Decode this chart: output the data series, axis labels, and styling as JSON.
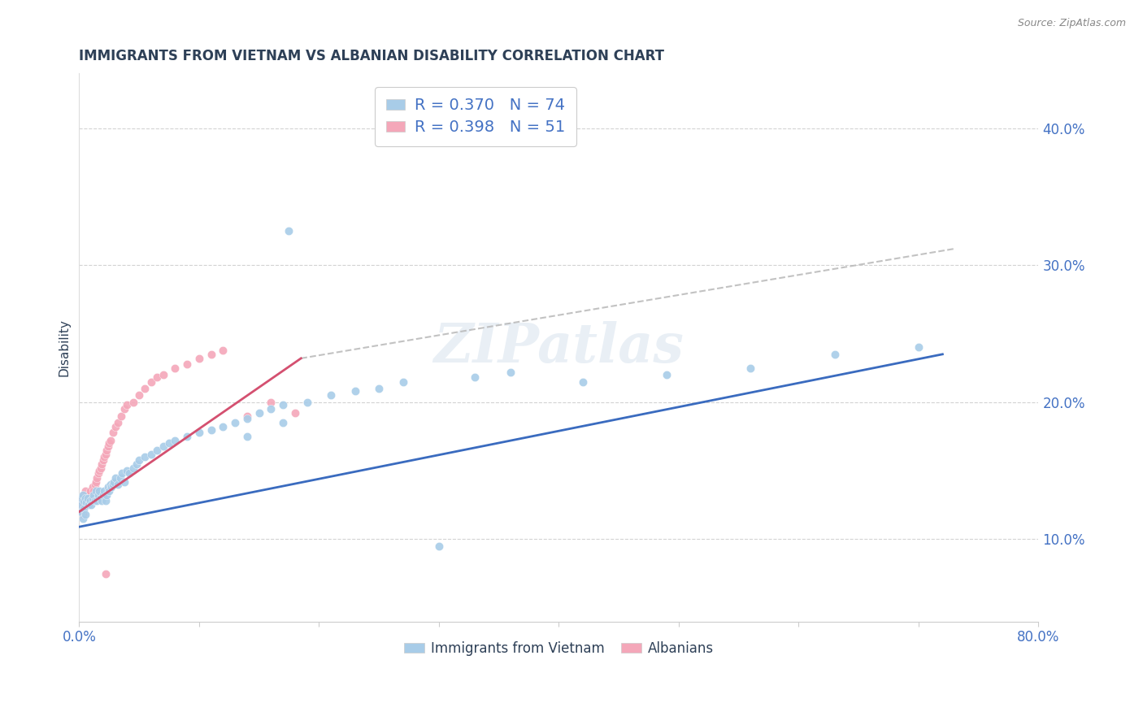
{
  "title": "IMMIGRANTS FROM VIETNAM VS ALBANIAN DISABILITY CORRELATION CHART",
  "source": "Source: ZipAtlas.com",
  "ylabel": "Disability",
  "xlim": [
    0.0,
    0.8
  ],
  "ylim": [
    0.04,
    0.44
  ],
  "xticks": [
    0.0,
    0.1,
    0.2,
    0.3,
    0.4,
    0.5,
    0.6,
    0.7,
    0.8
  ],
  "yticks": [
    0.1,
    0.2,
    0.3,
    0.4
  ],
  "ytick_labels": [
    "10.0%",
    "20.0%",
    "30.0%",
    "40.0%"
  ],
  "background_color": "#ffffff",
  "grid_color": "#c8c8c8",
  "watermark": "ZIPatlas",
  "vietnam": {
    "name": "Immigrants from Vietnam",
    "R": "0.370",
    "N": "74",
    "scatter_color": "#a8cce8",
    "trend_color": "#3a6bbf",
    "points_x": [
      0.001,
      0.002,
      0.002,
      0.003,
      0.003,
      0.004,
      0.004,
      0.005,
      0.005,
      0.006,
      0.007,
      0.008,
      0.009,
      0.01,
      0.011,
      0.012,
      0.013,
      0.014,
      0.015,
      0.016,
      0.017,
      0.018,
      0.019,
      0.02,
      0.021,
      0.022,
      0.023,
      0.024,
      0.025,
      0.026,
      0.027,
      0.028,
      0.029,
      0.03,
      0.032,
      0.034,
      0.036,
      0.038,
      0.04,
      0.042,
      0.045,
      0.048,
      0.05,
      0.055,
      0.06,
      0.065,
      0.07,
      0.075,
      0.08,
      0.09,
      0.1,
      0.11,
      0.12,
      0.13,
      0.14,
      0.15,
      0.16,
      0.17,
      0.19,
      0.21,
      0.23,
      0.25,
      0.27,
      0.3,
      0.33,
      0.36,
      0.14,
      0.17,
      0.42,
      0.49,
      0.56,
      0.63,
      0.175,
      0.7
    ],
    "points_y": [
      0.125,
      0.13,
      0.12,
      0.115,
      0.132,
      0.128,
      0.122,
      0.118,
      0.13,
      0.127,
      0.13,
      0.125,
      0.128,
      0.125,
      0.13,
      0.132,
      0.128,
      0.135,
      0.128,
      0.132,
      0.135,
      0.13,
      0.128,
      0.132,
      0.135,
      0.128,
      0.132,
      0.138,
      0.135,
      0.14,
      0.138,
      0.14,
      0.142,
      0.145,
      0.14,
      0.145,
      0.148,
      0.142,
      0.15,
      0.148,
      0.152,
      0.155,
      0.158,
      0.16,
      0.162,
      0.165,
      0.168,
      0.17,
      0.172,
      0.175,
      0.178,
      0.18,
      0.182,
      0.185,
      0.188,
      0.192,
      0.195,
      0.198,
      0.2,
      0.205,
      0.208,
      0.21,
      0.215,
      0.095,
      0.218,
      0.222,
      0.175,
      0.185,
      0.215,
      0.22,
      0.225,
      0.235,
      0.325,
      0.24
    ],
    "trend_x": [
      0.0,
      0.72
    ],
    "trend_y": [
      0.109,
      0.235
    ]
  },
  "albanian": {
    "name": "Albanians",
    "R": "0.398",
    "N": "51",
    "scatter_color": "#f4a7b9",
    "trend_color": "#d45070",
    "points_x": [
      0.001,
      0.002,
      0.002,
      0.003,
      0.003,
      0.004,
      0.004,
      0.005,
      0.005,
      0.006,
      0.007,
      0.008,
      0.009,
      0.01,
      0.011,
      0.012,
      0.013,
      0.014,
      0.015,
      0.016,
      0.017,
      0.018,
      0.019,
      0.02,
      0.021,
      0.022,
      0.023,
      0.024,
      0.025,
      0.026,
      0.028,
      0.03,
      0.032,
      0.035,
      0.038,
      0.04,
      0.045,
      0.05,
      0.055,
      0.06,
      0.065,
      0.07,
      0.08,
      0.09,
      0.1,
      0.11,
      0.12,
      0.14,
      0.16,
      0.18,
      0.022
    ],
    "points_y": [
      0.125,
      0.128,
      0.122,
      0.13,
      0.118,
      0.125,
      0.132,
      0.128,
      0.135,
      0.13,
      0.132,
      0.128,
      0.135,
      0.13,
      0.138,
      0.135,
      0.14,
      0.142,
      0.145,
      0.148,
      0.15,
      0.152,
      0.155,
      0.158,
      0.16,
      0.162,
      0.165,
      0.168,
      0.17,
      0.172,
      0.178,
      0.182,
      0.185,
      0.19,
      0.195,
      0.198,
      0.2,
      0.205,
      0.21,
      0.215,
      0.218,
      0.22,
      0.225,
      0.228,
      0.232,
      0.235,
      0.238,
      0.19,
      0.2,
      0.192,
      0.075
    ],
    "trend_x": [
      0.0,
      0.185
    ],
    "trend_y": [
      0.12,
      0.232
    ]
  },
  "dashed_trend_x": [
    0.185,
    0.73
  ],
  "dashed_trend_y": [
    0.232,
    0.312
  ],
  "dashed_color": "#b8b8b8",
  "title_color": "#2e4057",
  "axis_label_color": "#4472c4",
  "legend_text_dark": "#222222",
  "legend_R_color": "#4472c4",
  "legend_N_color": "#4472c4"
}
